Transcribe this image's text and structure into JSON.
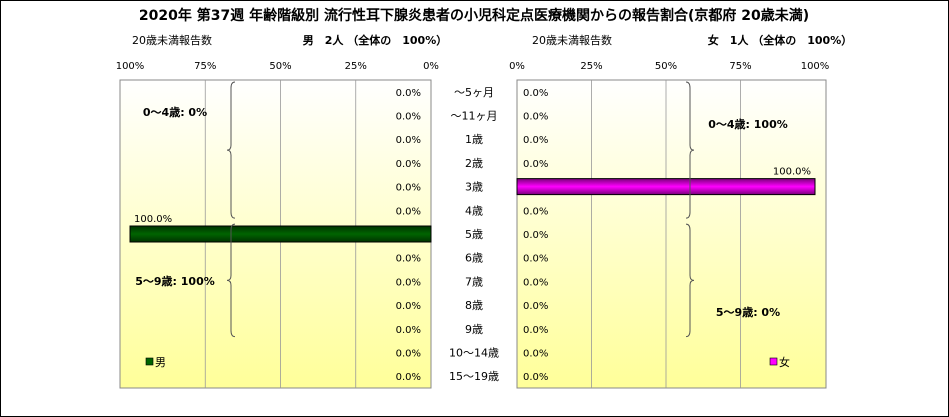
{
  "title": "2020年 第37週 年齢階級別 流行性耳下腺炎患者の小児科定点医療機関からの報告割合(京都府 20歳未満)",
  "colors": {
    "male": "#006400",
    "female": "#ff00ff",
    "plot_bg_top": "#ffffff",
    "plot_bg_bottom": "#ffff99"
  },
  "chart_data": [
    {
      "type": "bar",
      "orientation": "horizontal",
      "side": "left",
      "title": "男　2人 （全体の　100%）",
      "subtitle": "20歳未満報告数",
      "legend": "男",
      "legend_position": "bottom-left",
      "xlim": [
        0,
        100
      ],
      "x_reversed": true,
      "ticks": [
        "100%",
        "75%",
        "50%",
        "25%",
        "0%"
      ],
      "categories": [
        "～5ヶ月",
        "～11ヶ月",
        "1歳",
        "2歳",
        "3歳",
        "4歳",
        "5歳",
        "6歳",
        "7歳",
        "8歳",
        "9歳",
        "10～14歳",
        "15～19歳"
      ],
      "values": [
        0,
        0,
        0,
        0,
        0,
        0,
        100,
        0,
        0,
        0,
        0,
        0,
        0
      ],
      "value_labels": [
        "0.0%",
        "0.0%",
        "0.0%",
        "0.0%",
        "0.0%",
        "0.0%",
        "100.0%",
        "0.0%",
        "0.0%",
        "0.0%",
        "0.0%",
        "0.0%",
        "0.0%"
      ],
      "annotations": [
        {
          "text": "0～4歳: 0%",
          "from_category": 0,
          "to_category": 5
        },
        {
          "text": "5～9歳: 100%",
          "from_category": 6,
          "to_category": 10
        }
      ],
      "grid": true
    },
    {
      "type": "bar",
      "orientation": "horizontal",
      "side": "right",
      "title": "女　1人 （全体の　100%）",
      "subtitle": "20歳未満報告数",
      "legend": "女",
      "legend_position": "bottom-right",
      "xlim": [
        0,
        100
      ],
      "x_reversed": false,
      "ticks": [
        "0%",
        "25%",
        "50%",
        "75%",
        "100%"
      ],
      "categories": [
        "～5ヶ月",
        "～11ヶ月",
        "1歳",
        "2歳",
        "3歳",
        "4歳",
        "5歳",
        "6歳",
        "7歳",
        "8歳",
        "9歳",
        "10～14歳",
        "15～19歳"
      ],
      "values": [
        0,
        0,
        0,
        0,
        100,
        0,
        0,
        0,
        0,
        0,
        0,
        0,
        0
      ],
      "value_labels": [
        "0.0%",
        "0.0%",
        "0.0%",
        "0.0%",
        "100.0%",
        "0.0%",
        "0.0%",
        "0.0%",
        "0.0%",
        "0.0%",
        "0.0%",
        "0.0%",
        "0.0%"
      ],
      "annotations": [
        {
          "text": "0～4歳: 100%",
          "from_category": 0,
          "to_category": 5
        },
        {
          "text": "5～9歳: 0%",
          "from_category": 6,
          "to_category": 10
        }
      ],
      "grid": true
    }
  ]
}
